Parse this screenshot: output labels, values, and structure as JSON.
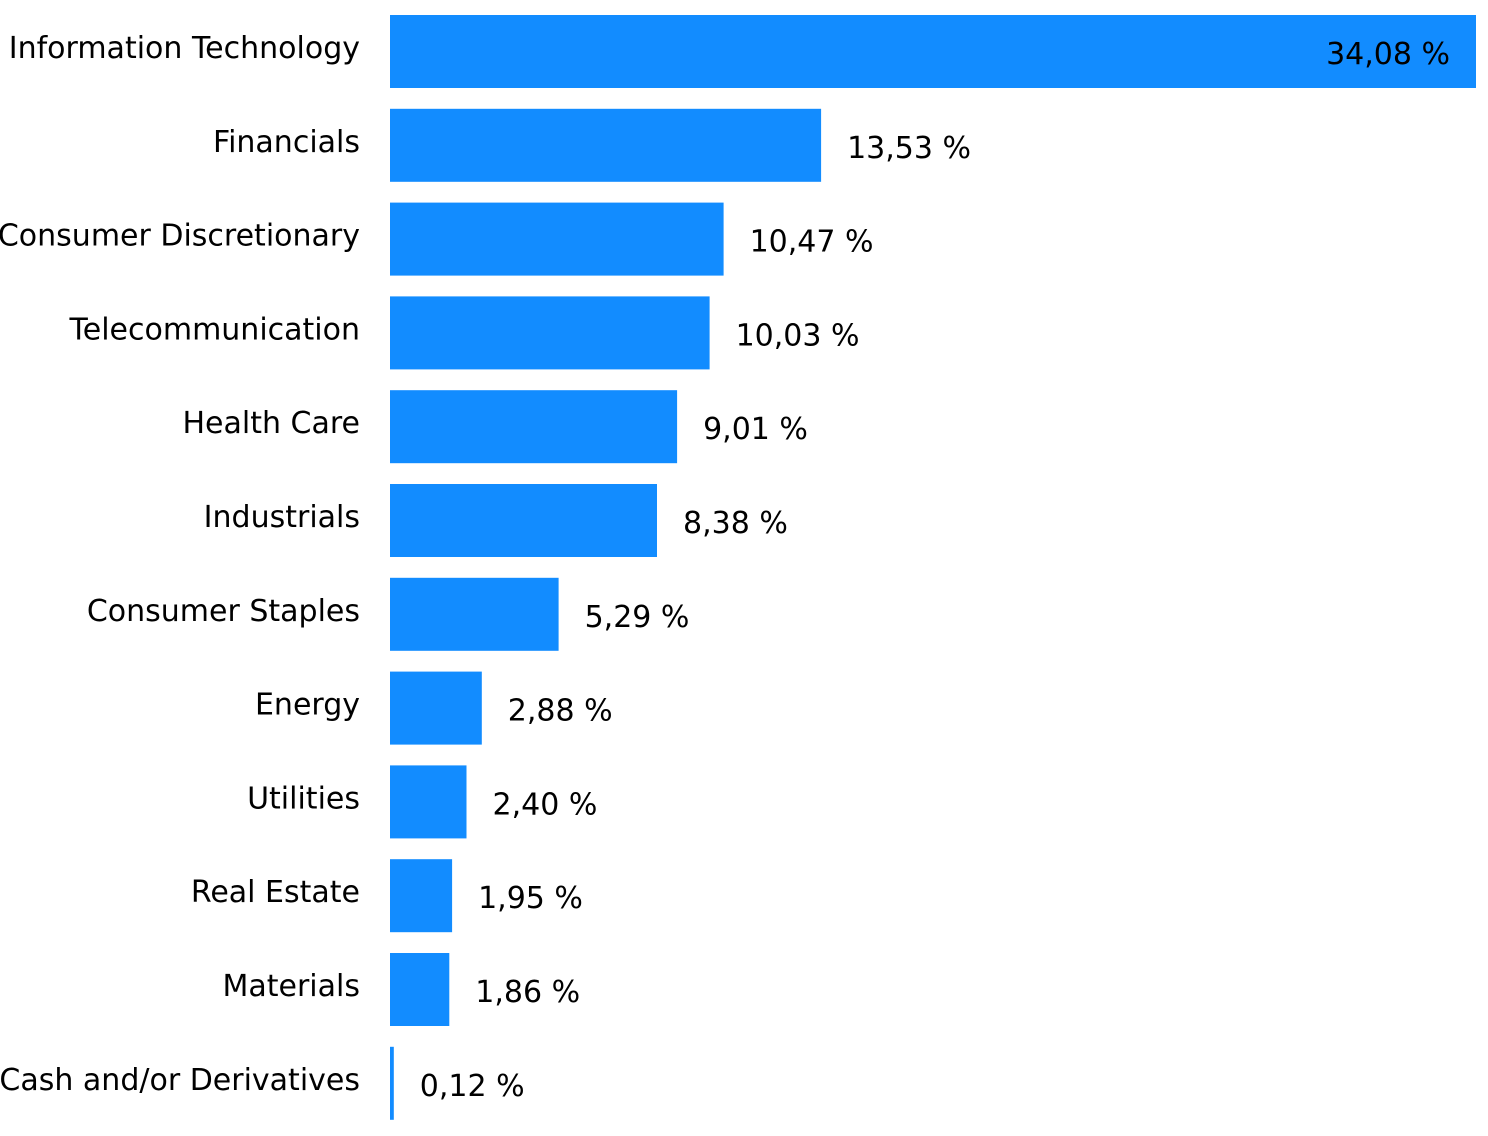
{
  "chart_data": {
    "type": "bar",
    "orientation": "horizontal",
    "categories": [
      "Information Technology",
      "Financials",
      "Consumer Discretionary",
      "Telecommunication",
      "Health Care",
      "Industrials",
      "Consumer Staples",
      "Energy",
      "Utilities",
      "Real Estate",
      "Materials",
      "Cash and/or Derivatives"
    ],
    "values": [
      34.08,
      13.53,
      10.47,
      10.03,
      9.01,
      8.38,
      5.29,
      2.88,
      2.4,
      1.95,
      1.86,
      0.12
    ],
    "value_labels": [
      "34,08 %",
      "13,53 %",
      "10,47 %",
      "10,03 %",
      "9,01 %",
      "8,38 %",
      "5,29 %",
      "2,88 %",
      "2,40 %",
      "1,95 %",
      "1,86 %",
      "0,12 %"
    ],
    "title": "",
    "xlabel": "",
    "ylabel": "",
    "xlim": [
      0,
      34.08
    ],
    "grid": false,
    "legend": "none",
    "colors": {
      "bar": "#128CFF",
      "text": "#000000",
      "background": "#FFFFFF"
    }
  }
}
